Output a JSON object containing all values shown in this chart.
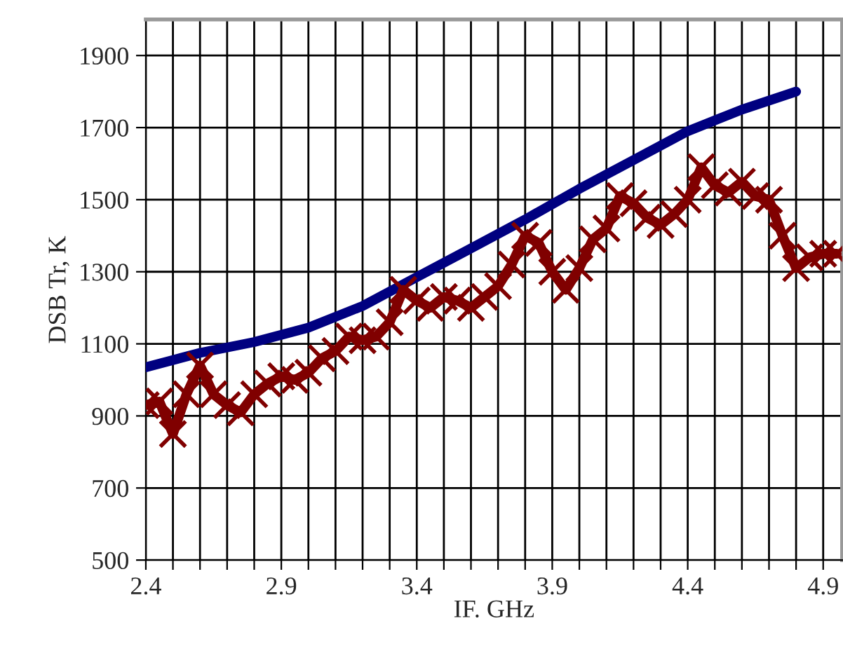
{
  "chart_data": {
    "type": "line",
    "xlabel": "IF. GHz",
    "ylabel": "DSB Tr, K",
    "xlim": [
      2.4,
      4.97
    ],
    "xticks": [
      2.4,
      {
        "value": 2.5,
        "label": null
      },
      {
        "value": 2.6,
        "label": null
      },
      {
        "value": 2.7,
        "label": null
      },
      {
        "value": 2.8,
        "label": null
      },
      2.9,
      {
        "value": 3.0,
        "label": null
      },
      {
        "value": 3.1,
        "label": null
      },
      {
        "value": 3.2,
        "label": null
      },
      {
        "value": 3.3,
        "label": null
      },
      3.4,
      {
        "value": 3.5,
        "label": null
      },
      {
        "value": 3.6,
        "label": null
      },
      {
        "value": 3.7,
        "label": null
      },
      {
        "value": 3.8,
        "label": null
      },
      3.9,
      {
        "value": 4.0,
        "label": null
      },
      {
        "value": 4.1,
        "label": null
      },
      {
        "value": 4.2,
        "label": null
      },
      {
        "value": 4.3,
        "label": null
      },
      4.4,
      {
        "value": 4.5,
        "label": null
      },
      {
        "value": 4.6,
        "label": null
      },
      {
        "value": 4.7,
        "label": null
      },
      {
        "value": 4.8,
        "label": null
      },
      4.9
    ],
    "ylim": [
      500,
      2000
    ],
    "yticks": [
      500,
      700,
      900,
      1100,
      1300,
      1500,
      1700,
      1900
    ],
    "grid": true,
    "series": [
      {
        "color": "#000080",
        "marker": "none",
        "x": [
          2.4,
          2.6,
          2.8,
          3.0,
          3.2,
          3.4,
          3.6,
          3.8,
          4.0,
          4.2,
          4.4,
          4.6,
          4.8
        ],
        "values": [
          1035,
          1075,
          1105,
          1145,
          1205,
          1285,
          1365,
          1445,
          1530,
          1610,
          1690,
          1750,
          1800
        ]
      },
      {
        "color": "#800000",
        "marker": "cross",
        "x": [
          2.4,
          2.45,
          2.5,
          2.55,
          2.6,
          2.65,
          2.7,
          2.75,
          2.8,
          2.85,
          2.9,
          2.95,
          3.0,
          3.05,
          3.1,
          3.15,
          3.2,
          3.25,
          3.3,
          3.35,
          3.4,
          3.45,
          3.5,
          3.55,
          3.6,
          3.65,
          3.7,
          3.75,
          3.8,
          3.85,
          3.9,
          3.95,
          4.0,
          4.05,
          4.1,
          4.15,
          4.2,
          4.25,
          4.3,
          4.35,
          4.4,
          4.45,
          4.5,
          4.55,
          4.6,
          4.65,
          4.7,
          4.75,
          4.8,
          4.85,
          4.9,
          4.95
        ],
        "values": [
          930,
          940,
          850,
          960,
          1040,
          960,
          930,
          910,
          960,
          990,
          1010,
          1000,
          1020,
          1060,
          1080,
          1120,
          1110,
          1120,
          1160,
          1250,
          1220,
          1200,
          1230,
          1220,
          1200,
          1230,
          1260,
          1320,
          1400,
          1380,
          1300,
          1250,
          1310,
          1390,
          1420,
          1510,
          1490,
          1450,
          1430,
          1460,
          1500,
          1590,
          1540,
          1520,
          1550,
          1510,
          1500,
          1400,
          1310,
          1340,
          1350,
          1350
        ]
      }
    ]
  }
}
